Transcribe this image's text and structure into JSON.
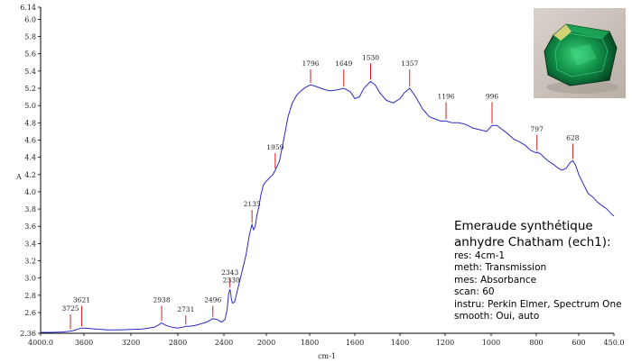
{
  "info": {
    "title_line1": "Emeraude synthétique",
    "title_line2": "anhydre Chatham (ech1):",
    "lines": [
      "res: 4cm-1",
      "meth: Transmission",
      "mes: Absorbance",
      "scan: 60",
      "instru: Perkin Elmer, Spectrum One",
      "smooth: Oui, auto"
    ]
  },
  "colors": {
    "line": "#2b2bc0",
    "peak_marker": "#cc2222",
    "axis": "#000000"
  },
  "photo": {
    "icon": "emerald-gem-photo"
  },
  "chart_data": {
    "type": "line",
    "xlabel": "cm-1",
    "ylabel": "A",
    "xlim": [
      4000.0,
      450.0
    ],
    "ylim": [
      2.36,
      6.14
    ],
    "x_ticks": [
      {
        "value": 4000,
        "label": "4000.0"
      },
      {
        "value": 3600,
        "label": "3600"
      },
      {
        "value": 3200,
        "label": "3200"
      },
      {
        "value": 2800,
        "label": "2800"
      },
      {
        "value": 2400,
        "label": "2400"
      },
      {
        "value": 2000,
        "label": "2000"
      },
      {
        "value": 1800,
        "label": "1800"
      },
      {
        "value": 1600,
        "label": "1600"
      },
      {
        "value": 1400,
        "label": "1400"
      },
      {
        "value": 1200,
        "label": "1200"
      },
      {
        "value": 1000,
        "label": "1000"
      },
      {
        "value": 800,
        "label": "800"
      },
      {
        "value": 600,
        "label": "600"
      },
      {
        "value": 450,
        "label": "450.0"
      }
    ],
    "y_ticks": [
      {
        "value": 2.36,
        "label": "2.36"
      },
      {
        "value": 2.6,
        "label": "2.6"
      },
      {
        "value": 2.8,
        "label": "2.8"
      },
      {
        "value": 3.0,
        "label": "3.0"
      },
      {
        "value": 3.2,
        "label": "3.2"
      },
      {
        "value": 3.4,
        "label": "3.4"
      },
      {
        "value": 3.6,
        "label": "3.6"
      },
      {
        "value": 3.8,
        "label": "3.8"
      },
      {
        "value": 4.0,
        "label": "4.0"
      },
      {
        "value": 4.2,
        "label": "4.2"
      },
      {
        "value": 4.4,
        "label": "4.4"
      },
      {
        "value": 4.6,
        "label": "4.6"
      },
      {
        "value": 4.8,
        "label": "4.8"
      },
      {
        "value": 5.0,
        "label": "5.0"
      },
      {
        "value": 5.2,
        "label": "5.2"
      },
      {
        "value": 5.4,
        "label": "5.4"
      },
      {
        "value": 5.6,
        "label": "5.6"
      },
      {
        "value": 5.8,
        "label": "5.8"
      },
      {
        "value": 6.0,
        "label": "6.0"
      },
      {
        "value": 6.14,
        "label": "6.14"
      }
    ],
    "series": [
      {
        "x": [
          4000,
          3900,
          3800,
          3725,
          3700,
          3650,
          3621,
          3600,
          3500,
          3400,
          3300,
          3200,
          3100,
          3000,
          2960,
          2938,
          2900,
          2850,
          2800,
          2760,
          2731,
          2700,
          2650,
          2600,
          2550,
          2520,
          2496,
          2460,
          2420,
          2390,
          2370,
          2355,
          2343,
          2335,
          2330,
          2320,
          2300,
          2280,
          2250,
          2220,
          2190,
          2160,
          2135,
          2120,
          2105,
          2090,
          2070,
          2050,
          2030,
          2010,
          1990,
          1970,
          1959,
          1940,
          1920,
          1900,
          1880,
          1860,
          1840,
          1820,
          1796,
          1770,
          1740,
          1710,
          1680,
          1649,
          1620,
          1600,
          1580,
          1560,
          1530,
          1510,
          1490,
          1460,
          1430,
          1400,
          1380,
          1357,
          1330,
          1300,
          1270,
          1240,
          1220,
          1196,
          1170,
          1140,
          1110,
          1080,
          1050,
          1020,
          996,
          975,
          950,
          925,
          900,
          875,
          850,
          825,
          800,
          797,
          780,
          760,
          740,
          720,
          700,
          680,
          660,
          640,
          628,
          615,
          600,
          580,
          560,
          540,
          520,
          500,
          480,
          460,
          450
        ],
        "y": [
          2.37,
          2.37,
          2.375,
          2.385,
          2.39,
          2.41,
          2.42,
          2.42,
          2.41,
          2.4,
          2.4,
          2.405,
          2.41,
          2.43,
          2.46,
          2.48,
          2.45,
          2.43,
          2.42,
          2.43,
          2.44,
          2.44,
          2.45,
          2.47,
          2.49,
          2.51,
          2.53,
          2.52,
          2.49,
          2.52,
          2.63,
          2.82,
          2.87,
          2.82,
          2.76,
          2.71,
          2.72,
          2.82,
          2.97,
          3.12,
          3.28,
          3.5,
          3.62,
          3.56,
          3.6,
          3.72,
          3.83,
          3.97,
          4.07,
          4.11,
          4.15,
          4.2,
          4.25,
          4.35,
          4.6,
          4.87,
          5.03,
          5.12,
          5.17,
          5.21,
          5.24,
          5.22,
          5.19,
          5.17,
          5.18,
          5.2,
          5.16,
          5.08,
          5.1,
          5.2,
          5.28,
          5.24,
          5.15,
          5.06,
          5.03,
          5.08,
          5.15,
          5.2,
          5.1,
          4.96,
          4.87,
          4.84,
          4.82,
          4.82,
          4.8,
          4.8,
          4.78,
          4.74,
          4.72,
          4.7,
          4.77,
          4.77,
          4.72,
          4.67,
          4.61,
          4.58,
          4.54,
          4.48,
          4.45,
          4.46,
          4.44,
          4.39,
          4.35,
          4.32,
          4.28,
          4.25,
          4.27,
          4.34,
          4.36,
          4.31,
          4.2,
          4.09,
          3.98,
          3.94,
          3.88,
          3.84,
          3.8,
          3.74,
          3.72
        ]
      }
    ],
    "peak_labels": [
      {
        "x": 3725,
        "y": 2.6,
        "label": "3725"
      },
      {
        "x": 3621,
        "y": 2.7,
        "label": "3621"
      },
      {
        "x": 2938,
        "y": 2.7,
        "label": "2938"
      },
      {
        "x": 2731,
        "y": 2.59,
        "label": "2731"
      },
      {
        "x": 2496,
        "y": 2.7,
        "label": "2496"
      },
      {
        "x": 2343,
        "y": 3.02,
        "label": "2343"
      },
      {
        "x": 2330,
        "y": 2.93,
        "label": "2330"
      },
      {
        "x": 2135,
        "y": 3.81,
        "label": "2135"
      },
      {
        "x": 1959,
        "y": 4.47,
        "label": "1959"
      },
      {
        "x": 1796,
        "y": 5.44,
        "label": "1796"
      },
      {
        "x": 1649,
        "y": 5.44,
        "label": "1649"
      },
      {
        "x": 1530,
        "y": 5.51,
        "label": "1530"
      },
      {
        "x": 1357,
        "y": 5.44,
        "label": "1357"
      },
      {
        "x": 1196,
        "y": 5.06,
        "label": "1196"
      },
      {
        "x": 996,
        "y": 5.06,
        "label": "996"
      },
      {
        "x": 797,
        "y": 4.68,
        "label": "797"
      },
      {
        "x": 628,
        "y": 4.58,
        "label": "628"
      }
    ]
  }
}
